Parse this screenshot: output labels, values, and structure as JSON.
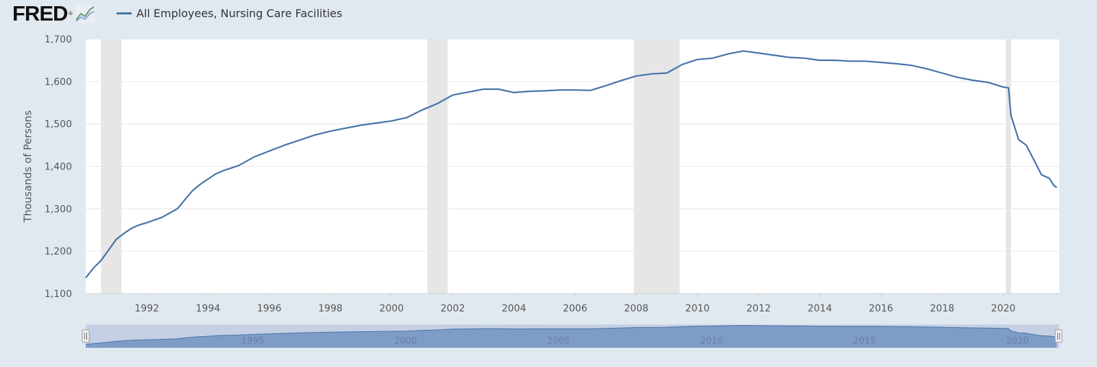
{
  "header": {
    "logo_text": "FRED",
    "logo_mark": "®",
    "logo_icon": "line-graph-icon"
  },
  "colors": {
    "page_background": "#e1e9f0",
    "plot_background": "#ffffff",
    "series_line": "#4572a7",
    "recession_band": "#e6e6e6",
    "gridline": "#e6e6e6",
    "navigator_background": "#c5d0e4",
    "navigator_area": "#7f9cc7"
  },
  "chart_data": {
    "type": "line",
    "title": "",
    "legend": {
      "position": "top-left",
      "entries": [
        "All Employees, Nursing Care Facilities"
      ]
    },
    "xlabel": "",
    "ylabel": "Thousands of Persons",
    "xlim": [
      1990.0,
      2021.83
    ],
    "ylim": [
      1100,
      1700
    ],
    "grid": true,
    "y_ticks": [
      1100,
      1200,
      1300,
      1400,
      1500,
      1600,
      1700
    ],
    "y_tick_labels": [
      "1,100",
      "1,200",
      "1,300",
      "1,400",
      "1,500",
      "1,600",
      "1,700"
    ],
    "x_ticks": [
      1992,
      1994,
      1996,
      1998,
      2000,
      2002,
      2004,
      2006,
      2008,
      2010,
      2012,
      2014,
      2016,
      2018,
      2020
    ],
    "x_tick_labels": [
      "1992",
      "1994",
      "1996",
      "1998",
      "2000",
      "2002",
      "2004",
      "2006",
      "2008",
      "2010",
      "2012",
      "2014",
      "2016",
      "2018",
      "2020"
    ],
    "recessions": [
      {
        "start": 1990.5,
        "end": 1991.17
      },
      {
        "start": 2001.17,
        "end": 2001.83
      },
      {
        "start": 2007.92,
        "end": 2009.42
      },
      {
        "start": 2020.08,
        "end": 2020.25
      }
    ],
    "series": [
      {
        "name": "All Employees, Nursing Care Facilities",
        "x": [
          1990.0,
          1990.25,
          1990.5,
          1990.75,
          1991.0,
          1991.25,
          1991.5,
          1991.75,
          1992.0,
          1992.5,
          1993.0,
          1993.25,
          1993.5,
          1993.75,
          1994.0,
          1994.25,
          1994.5,
          1995.0,
          1995.5,
          1996.0,
          1996.5,
          1997.0,
          1997.5,
          1998.0,
          1998.5,
          1999.0,
          1999.5,
          2000.0,
          2000.5,
          2001.0,
          2001.5,
          2002.0,
          2002.5,
          2003.0,
          2003.5,
          2004.0,
          2004.5,
          2005.0,
          2005.5,
          2006.0,
          2006.5,
          2007.0,
          2007.5,
          2008.0,
          2008.5,
          2009.0,
          2009.5,
          2010.0,
          2010.5,
          2011.0,
          2011.5,
          2012.0,
          2012.5,
          2013.0,
          2013.5,
          2014.0,
          2014.5,
          2015.0,
          2015.5,
          2016.0,
          2016.5,
          2017.0,
          2017.5,
          2018.0,
          2018.5,
          2019.0,
          2019.5,
          2020.0,
          2020.17,
          2020.25,
          2020.5,
          2020.75,
          2021.0,
          2021.25,
          2021.5,
          2021.65,
          2021.75
        ],
        "values": [
          1137,
          1160,
          1178,
          1203,
          1228,
          1242,
          1254,
          1262,
          1267,
          1280,
          1300,
          1322,
          1343,
          1358,
          1370,
          1382,
          1390,
          1402,
          1422,
          1436,
          1450,
          1462,
          1474,
          1483,
          1490,
          1497,
          1502,
          1507,
          1515,
          1533,
          1548,
          1568,
          1575,
          1582,
          1582,
          1574,
          1577,
          1578,
          1580,
          1580,
          1579,
          1590,
          1602,
          1613,
          1618,
          1620,
          1640,
          1652,
          1655,
          1665,
          1672,
          1667,
          1662,
          1657,
          1655,
          1650,
          1650,
          1648,
          1648,
          1645,
          1642,
          1638,
          1630,
          1620,
          1610,
          1603,
          1598,
          1587,
          1585,
          1520,
          1463,
          1450,
          1415,
          1380,
          1372,
          1355,
          1350
        ]
      }
    ]
  },
  "navigator": {
    "labels": [
      "1995",
      "2000",
      "2005",
      "2010",
      "2015",
      "2020"
    ],
    "label_years": [
      1995,
      2000,
      2005,
      2010,
      2015,
      2020
    ]
  }
}
